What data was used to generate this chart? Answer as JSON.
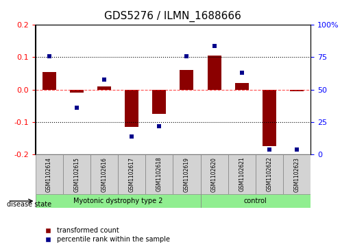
{
  "title": "GDS5276 / ILMN_1688666",
  "samples": [
    "GSM1102614",
    "GSM1102615",
    "GSM1102616",
    "GSM1102617",
    "GSM1102618",
    "GSM1102619",
    "GSM1102620",
    "GSM1102621",
    "GSM1102622",
    "GSM1102623"
  ],
  "red_values": [
    0.055,
    -0.01,
    0.01,
    -0.115,
    -0.075,
    0.06,
    0.105,
    0.02,
    -0.175,
    -0.005
  ],
  "blue_values": [
    0.76,
    0.36,
    0.58,
    0.14,
    0.22,
    0.76,
    0.84,
    0.63,
    0.04,
    0.04
  ],
  "groups": [
    {
      "label": "Myotonic dystrophy type 2",
      "start": 0,
      "end": 6,
      "color": "#90ee90"
    },
    {
      "label": "control",
      "start": 6,
      "end": 10,
      "color": "#90ee90"
    }
  ],
  "ylim_left": [
    -0.2,
    0.2
  ],
  "ylim_right": [
    0,
    100
  ],
  "yticks_left": [
    -0.2,
    -0.1,
    0.0,
    0.1,
    0.2
  ],
  "yticks_right": [
    0,
    25,
    50,
    75,
    100
  ],
  "ytick_labels_right": [
    "0",
    "25",
    "50",
    "75",
    "100%"
  ],
  "red_color": "#8B0000",
  "blue_color": "#00008B",
  "grid_color": "black",
  "bar_width": 0.5,
  "blue_marker_scale": 0.03,
  "disease_state_label": "disease state",
  "legend_items": [
    {
      "color": "#8B0000",
      "label": "transformed count"
    },
    {
      "color": "#00008B",
      "label": "percentile rank within the sample"
    }
  ],
  "background_color": "white",
  "plot_bg_color": "white"
}
